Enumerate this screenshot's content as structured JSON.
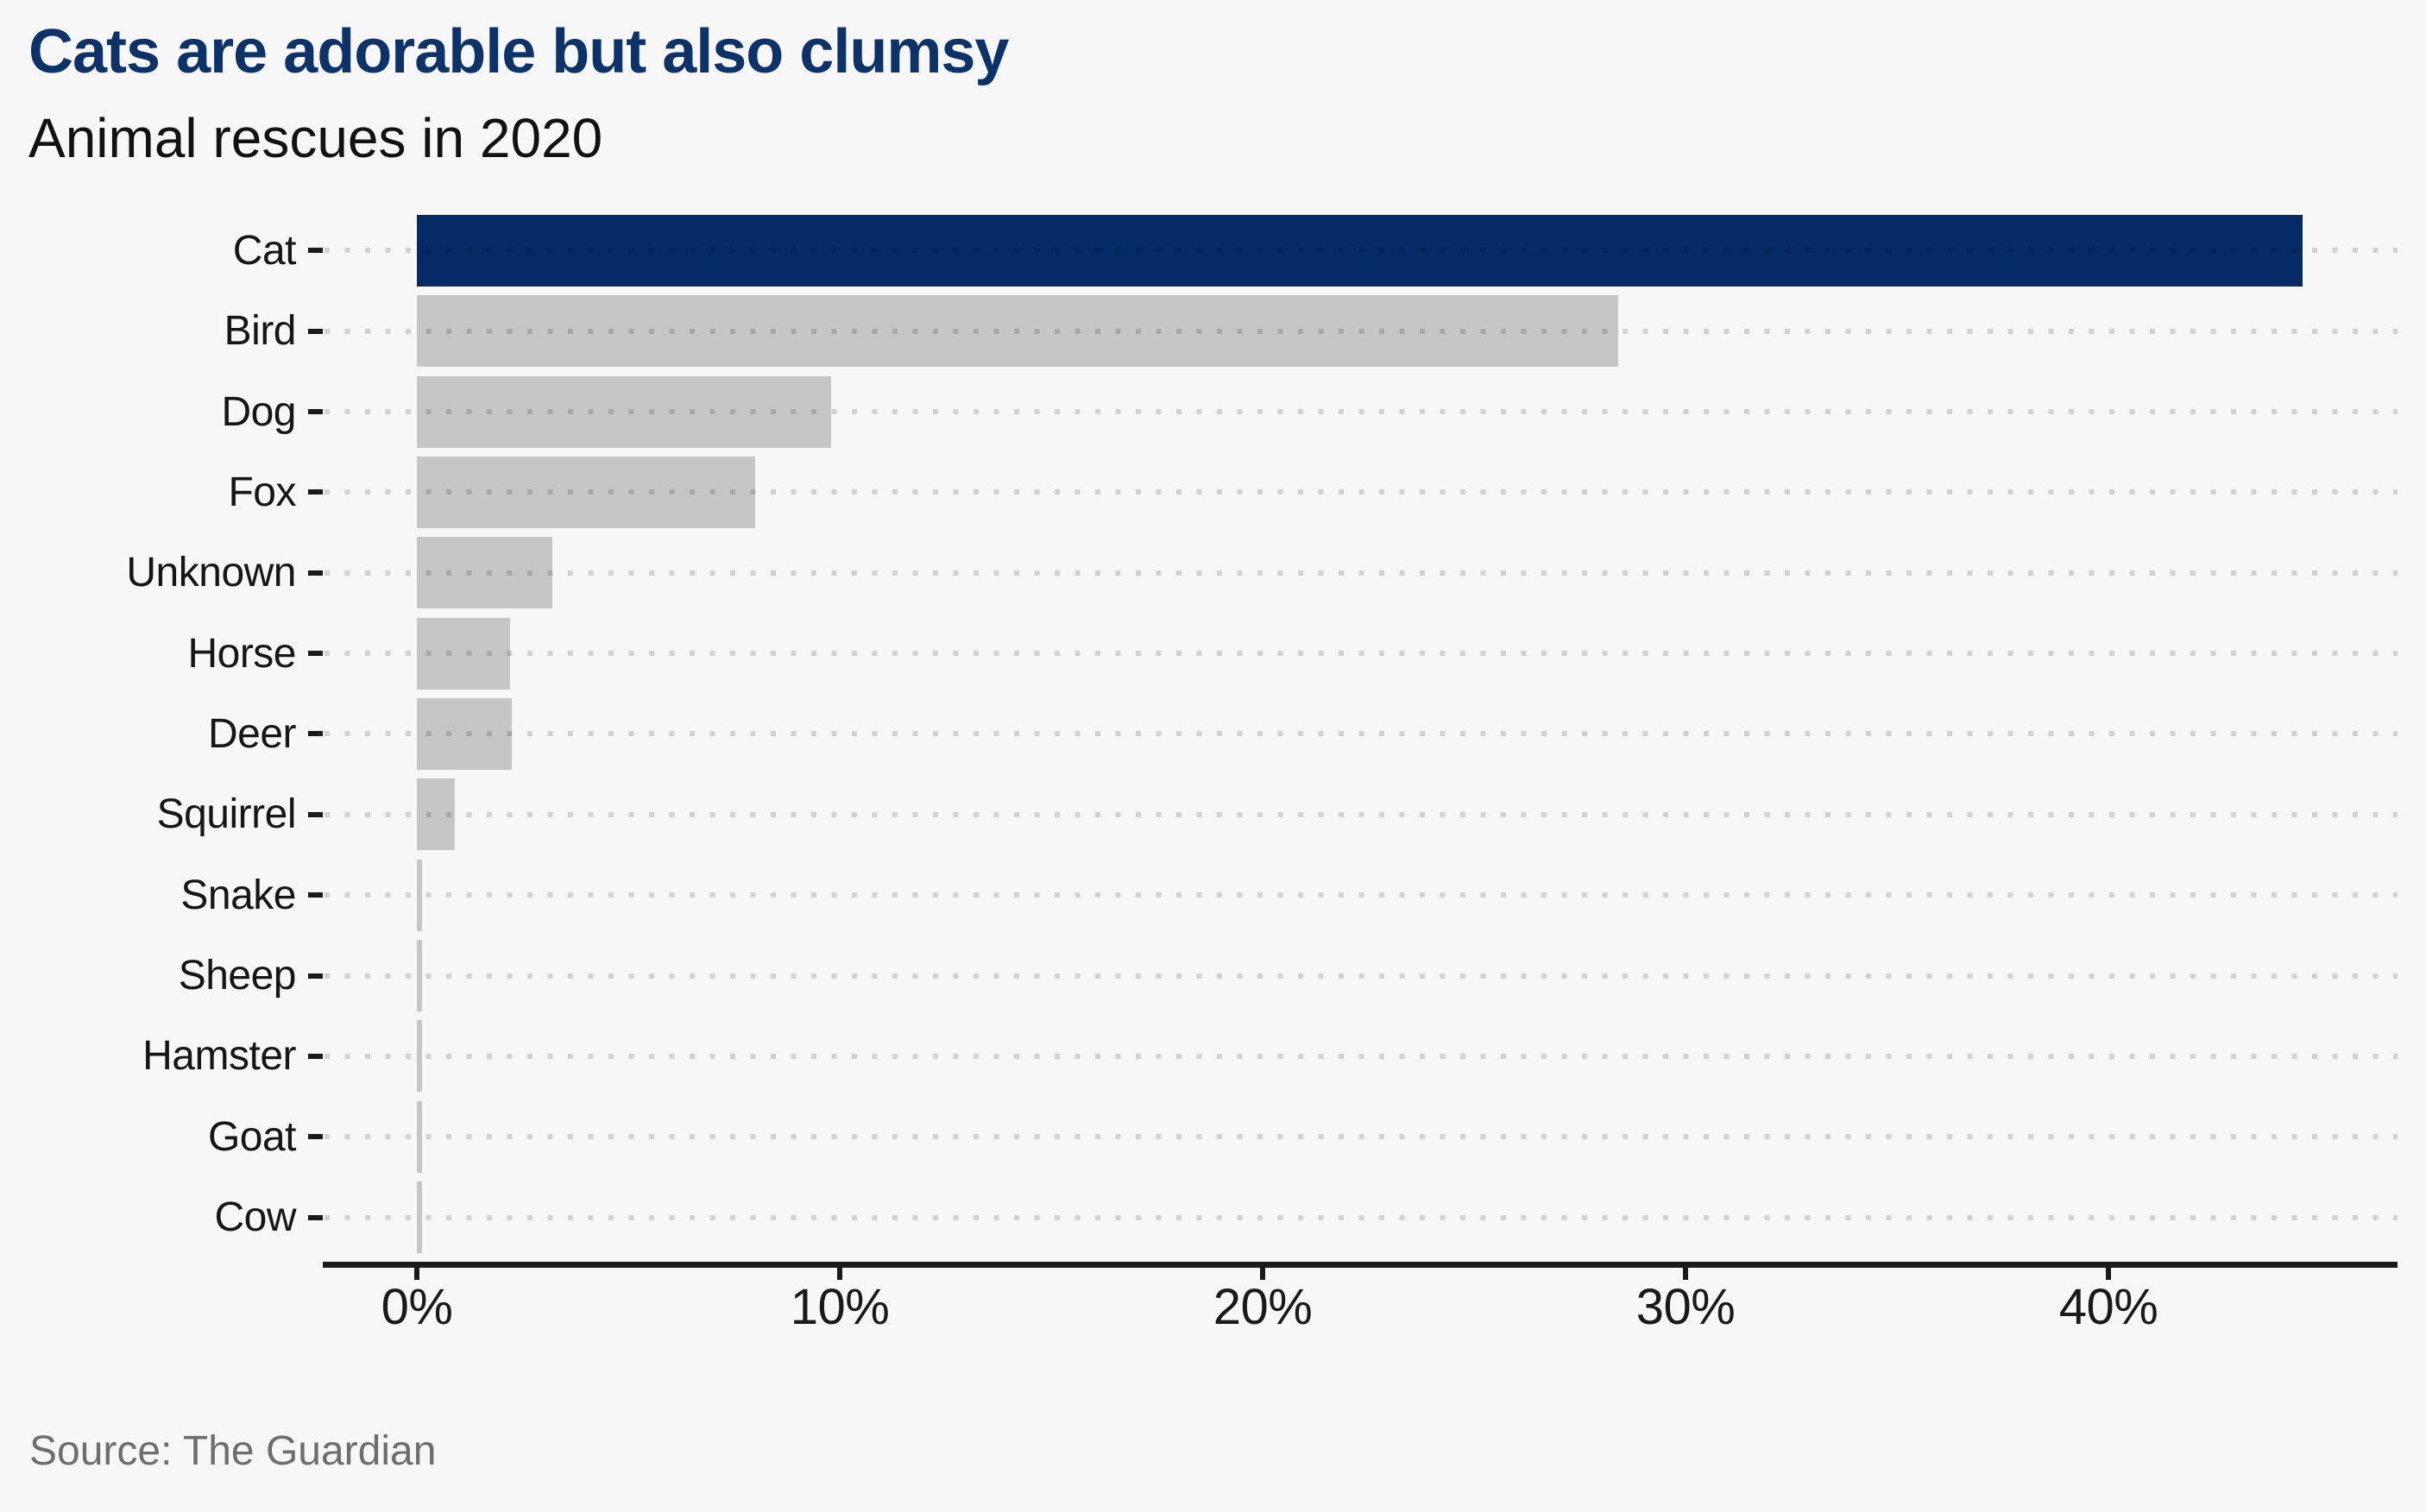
{
  "page": {
    "title": "Cats are adorable but also clumsy",
    "subtitle": "Animal rescues in 2020",
    "source": "Source: The Guardian"
  },
  "colors": {
    "background": "#f7f7f7",
    "title_text": "#0b3269",
    "subtitle_text": "#121212",
    "highlight_bar": "#052a66",
    "default_bar": "#c6c6c6",
    "axis": "#1a1a1a",
    "label_text": "#161616",
    "source_text": "#6e6e6e"
  },
  "chart_data": {
    "type": "bar",
    "orientation": "horizontal",
    "title": "Cats are adorable but also clumsy",
    "subtitle": "Animal rescues in 2020",
    "categories": [
      "Cat",
      "Bird",
      "Dog",
      "Fox",
      "Unknown",
      "Horse",
      "Deer",
      "Squirrel",
      "Snake",
      "Sheep",
      "Hamster",
      "Goat",
      "Cow"
    ],
    "values": [
      44.6,
      28.4,
      9.8,
      8.0,
      3.2,
      2.2,
      2.25,
      0.9,
      0.13,
      0.13,
      0.13,
      0.13,
      0.13
    ],
    "unit": "%",
    "highlighted_category": "Cat",
    "xlabel": "",
    "ylabel": "",
    "x_ticks": [
      {
        "value": 0,
        "label": "0%"
      },
      {
        "value": 10,
        "label": "10%"
      },
      {
        "value": 20,
        "label": "20%"
      },
      {
        "value": 30,
        "label": "30%"
      },
      {
        "value": 40,
        "label": "40%"
      }
    ],
    "xlim": [
      0,
      46.8
    ],
    "grid": "dotted-horizontal",
    "legend": "none",
    "source": "Source: The Guardian"
  }
}
